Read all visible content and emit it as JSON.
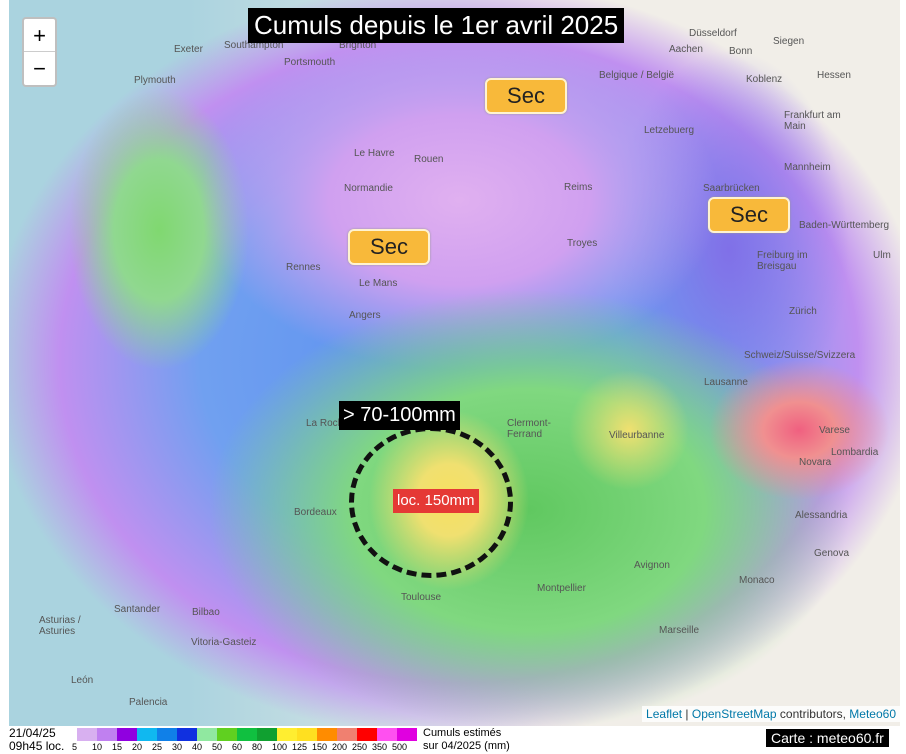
{
  "title": "Cumuls depuis le 1er avril 2025",
  "zoom": {
    "in": "+",
    "out": "−"
  },
  "dry_badges": [
    "Sec",
    "Sec",
    "Sec"
  ],
  "annotations": {
    "range": "> 70-100mm",
    "local_max": "loc. 150mm"
  },
  "places": [
    "Plymouth",
    "Southampton",
    "Portsmouth",
    "Brighton",
    "Exeter",
    "Düsseldorf",
    "Siegen",
    "Aachen",
    "Bonn",
    "Belgique / België",
    "Koblenz",
    "Hessen",
    "Frankfurt am Main",
    "Letzebuerg",
    "Mannheim",
    "Saarbrücken",
    "Baden-Württemberg",
    "Ulm",
    "Freiburg im Breisgau",
    "Zürich",
    "Le Havre",
    "Rouen",
    "Normandie",
    "Reims",
    "Troyes",
    "Rennes",
    "Le Mans",
    "Angers",
    "Schweiz/Suisse/Svizzera",
    "Lausanne",
    "La Rochelle",
    "Clermont-Ferrand",
    "Villeurbanne",
    "Lombardia",
    "Varese",
    "Novara",
    "Alessandria",
    "Genova",
    "Bordeaux",
    "Toulouse",
    "Montpellier",
    "Avignon",
    "Marseille",
    "Monaco",
    "Santander",
    "Bilbao",
    "Vitoria-Gasteiz",
    "Asturias / Asturies",
    "León",
    "Palencia"
  ],
  "attribution": {
    "leaflet": "Leaflet",
    "osm": "OpenStreetMap",
    "contributors": " contributors, ",
    "meteo60": "Meteo60"
  },
  "legend": {
    "date": "21/04/25",
    "time": "09h45 loc.",
    "colors": [
      "#d8b0f0",
      "#c080f0",
      "#9000e0",
      "#10b8f0",
      "#1080e8",
      "#1030e0",
      "#90e8a0",
      "#60d020",
      "#10c040",
      "#10a030",
      "#ffee30",
      "#ffe020",
      "#ff8c00",
      "#f08070",
      "#ff0000",
      "#ff50f0",
      "#e000e0"
    ],
    "ticks": [
      "5",
      "10",
      "15",
      "20",
      "25",
      "30",
      "40",
      "50",
      "60",
      "80",
      "100",
      "125",
      "150",
      "200",
      "250",
      "350",
      "500"
    ],
    "title_line1": "Cumuls estimés",
    "title_line2": "sur 04/2025 (mm)"
  },
  "credit": "Carte : meteo60.fr"
}
